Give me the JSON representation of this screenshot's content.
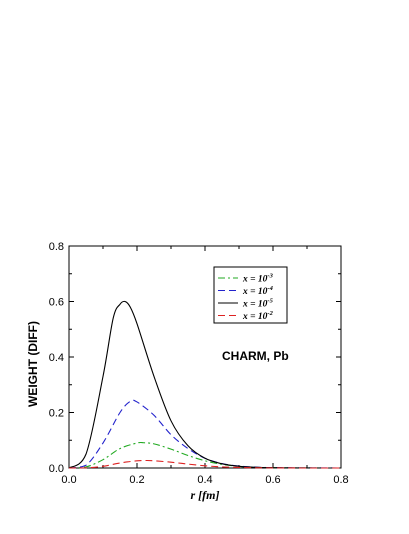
{
  "chart_data": {
    "type": "line",
    "title": "",
    "xlabel": "r [fm]",
    "ylabel": "WEIGHT (DIFF)",
    "xlim": [
      0.0,
      0.8
    ],
    "ylim": [
      0.0,
      0.8
    ],
    "xticks": [
      "0.0",
      "0.2",
      "0.4",
      "0.6",
      "0.8"
    ],
    "yticks": [
      "0.0",
      "0.2",
      "0.4",
      "0.6",
      "0.8"
    ],
    "grid": false,
    "legend_position": "top-right",
    "annotation": "CHARM, Pb",
    "series": [
      {
        "name_base": "x = 10",
        "name_exp": "-3",
        "color": "#22aa22",
        "dash": "dashdot",
        "x": [
          0.0,
          0.05,
          0.1,
          0.15,
          0.2,
          0.22,
          0.25,
          0.3,
          0.35,
          0.4,
          0.45,
          0.5,
          0.55,
          0.6,
          0.65,
          0.7,
          0.8
        ],
        "y": [
          0.0,
          0.004,
          0.03,
          0.07,
          0.09,
          0.091,
          0.087,
          0.068,
          0.045,
          0.026,
          0.013,
          0.006,
          0.0025,
          0.001,
          0.0004,
          0.0001,
          0.0
        ]
      },
      {
        "name_base": "x = 10",
        "name_exp": "-4",
        "color": "#2222cc",
        "dash": "dashed",
        "x": [
          0.0,
          0.05,
          0.1,
          0.15,
          0.18,
          0.2,
          0.25,
          0.3,
          0.35,
          0.4,
          0.45,
          0.5,
          0.55,
          0.6,
          0.65,
          0.7,
          0.8
        ],
        "y": [
          0.0,
          0.01,
          0.09,
          0.2,
          0.24,
          0.238,
          0.19,
          0.12,
          0.07,
          0.035,
          0.016,
          0.007,
          0.003,
          0.0012,
          0.0005,
          0.0002,
          0.0
        ]
      },
      {
        "name_base": "x = 10",
        "name_exp": "-5",
        "color": "#000000",
        "dash": "solid",
        "x": [
          0.0,
          0.05,
          0.1,
          0.13,
          0.15,
          0.165,
          0.18,
          0.2,
          0.25,
          0.3,
          0.35,
          0.4,
          0.45,
          0.5,
          0.55,
          0.6,
          0.65,
          0.7,
          0.8
        ],
        "y": [
          0.0,
          0.05,
          0.33,
          0.54,
          0.59,
          0.6,
          0.58,
          0.52,
          0.33,
          0.17,
          0.08,
          0.035,
          0.015,
          0.006,
          0.0025,
          0.001,
          0.0004,
          0.0001,
          0.0
        ]
      },
      {
        "name_base": "x = 10",
        "name_exp": "-2",
        "color": "#dd2222",
        "dash": "dashed",
        "x": [
          0.0,
          0.05,
          0.1,
          0.15,
          0.2,
          0.23,
          0.25,
          0.3,
          0.35,
          0.4,
          0.45,
          0.5,
          0.55,
          0.6,
          0.65,
          0.7,
          0.8
        ],
        "y": [
          0.0,
          0.0005,
          0.006,
          0.018,
          0.026,
          0.027,
          0.026,
          0.021,
          0.014,
          0.008,
          0.004,
          0.002,
          0.0008,
          0.0003,
          0.0001,
          0.0,
          0.0
        ]
      }
    ]
  }
}
